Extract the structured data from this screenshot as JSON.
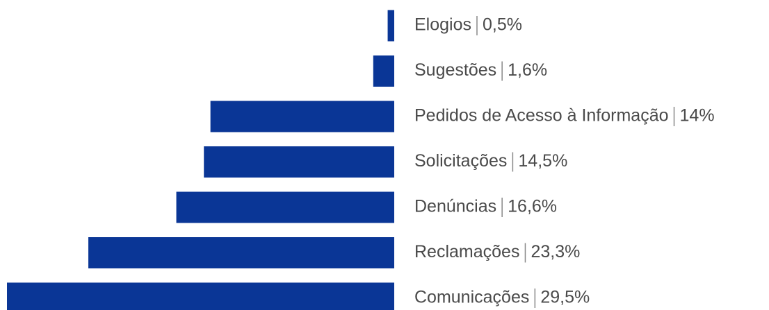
{
  "chart_data": {
    "type": "bar",
    "orientation": "horizontal",
    "categories": [
      "Elogios",
      "Sugestões",
      "Pedidos de Acesso à Informação",
      "Solicitações",
      "Denúncias",
      "Reclamações",
      "Comunicações"
    ],
    "values": [
      0.5,
      1.6,
      14,
      14.5,
      16.6,
      23.3,
      29.5
    ],
    "value_labels": [
      "0,5%",
      "1,6%",
      "14%",
      "14,5%",
      "16,6%",
      "23,3%",
      "29,5%"
    ],
    "color": "#0a3696"
  }
}
